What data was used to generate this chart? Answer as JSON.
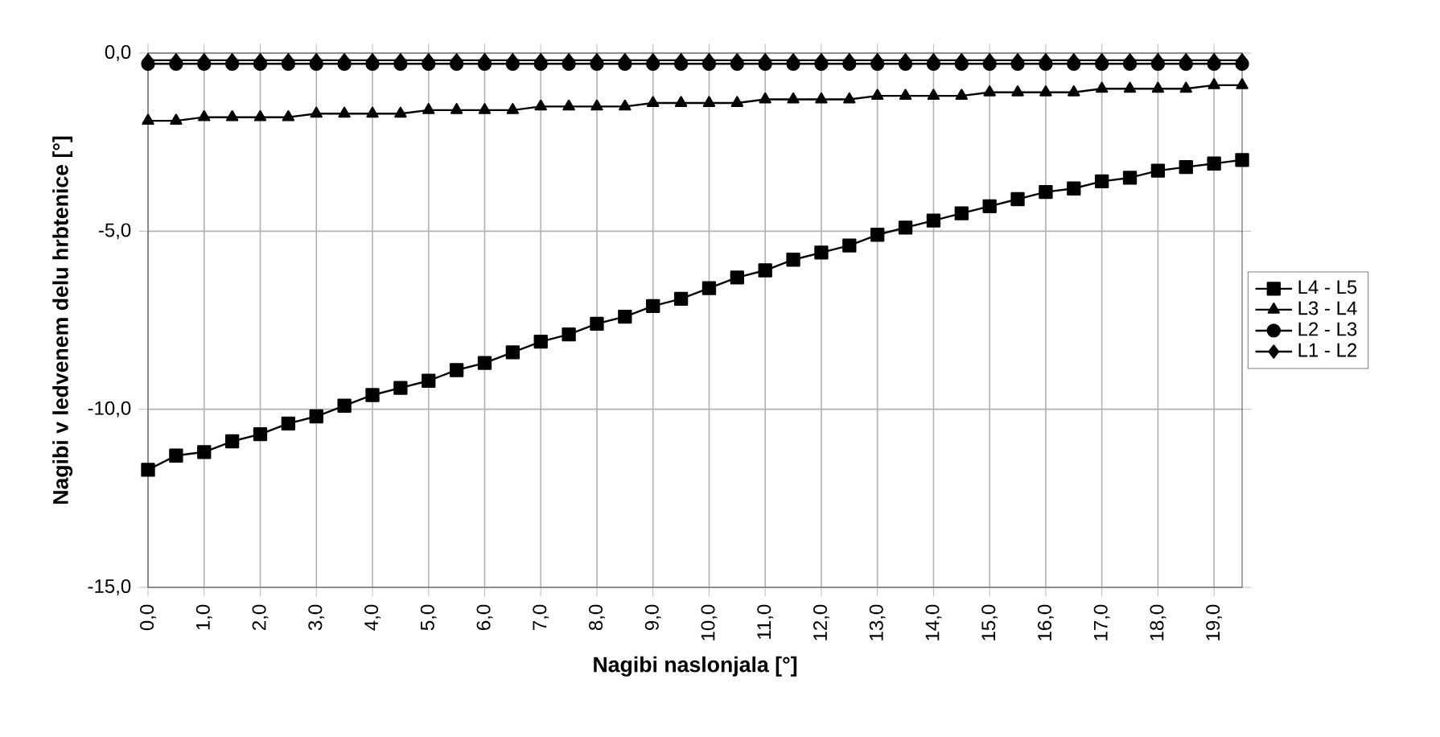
{
  "chart_data": {
    "type": "line",
    "xlabel": "Nagibi naslonjala [°]",
    "ylabel": "Nagibi v ledvenem delu hrbtenice [°]",
    "x": [
      0,
      0.5,
      1,
      1.5,
      2,
      2.5,
      3,
      3.5,
      4,
      4.5,
      5,
      5.5,
      6,
      6.5,
      7,
      7.5,
      8,
      8.5,
      9,
      9.5,
      10,
      10.5,
      11,
      11.5,
      12,
      12.5,
      13,
      13.5,
      14,
      14.5,
      15,
      15.5,
      16,
      16.5,
      17,
      17.5,
      18,
      18.5,
      19,
      19.5
    ],
    "series": [
      {
        "name": "L4 - L5",
        "color": "#000000",
        "marker": "square",
        "values": [
          -11.7,
          -11.3,
          -11.2,
          -10.9,
          -10.7,
          -10.4,
          -10.2,
          -9.9,
          -9.6,
          -9.4,
          -9.2,
          -8.9,
          -8.7,
          -8.4,
          -8.1,
          -7.9,
          -7.6,
          -7.4,
          -7.1,
          -6.9,
          -6.6,
          -6.3,
          -6.1,
          -5.8,
          -5.6,
          -5.4,
          -5.1,
          -4.9,
          -4.7,
          -4.5,
          -4.3,
          -4.1,
          -3.9,
          -3.8,
          -3.6,
          -3.5,
          -3.3,
          -3.2,
          -3.1,
          -3.0
        ]
      },
      {
        "name": "L3 - L4",
        "color": "#000000",
        "marker": "triangle",
        "values": [
          -1.9,
          -1.9,
          -1.8,
          -1.8,
          -1.8,
          -1.8,
          -1.7,
          -1.7,
          -1.7,
          -1.7,
          -1.6,
          -1.6,
          -1.6,
          -1.6,
          -1.5,
          -1.5,
          -1.5,
          -1.5,
          -1.4,
          -1.4,
          -1.4,
          -1.4,
          -1.3,
          -1.3,
          -1.3,
          -1.3,
          -1.2,
          -1.2,
          -1.2,
          -1.2,
          -1.1,
          -1.1,
          -1.1,
          -1.1,
          -1.0,
          -1.0,
          -1.0,
          -1.0,
          -0.9,
          -0.9
        ]
      },
      {
        "name": "L2 - L3",
        "color": "#000000",
        "marker": "circle",
        "values": [
          -0.3,
          -0.3,
          -0.3,
          -0.3,
          -0.3,
          -0.3,
          -0.3,
          -0.3,
          -0.3,
          -0.3,
          -0.3,
          -0.3,
          -0.3,
          -0.3,
          -0.3,
          -0.3,
          -0.3,
          -0.3,
          -0.3,
          -0.3,
          -0.3,
          -0.3,
          -0.3,
          -0.3,
          -0.3,
          -0.3,
          -0.3,
          -0.3,
          -0.3,
          -0.3,
          -0.3,
          -0.3,
          -0.3,
          -0.3,
          -0.3,
          -0.3,
          -0.3,
          -0.3,
          -0.3,
          -0.3
        ]
      },
      {
        "name": "L1 - L2",
        "color": "#000000",
        "marker": "diamond",
        "values": [
          -0.2,
          -0.2,
          -0.2,
          -0.2,
          -0.2,
          -0.2,
          -0.2,
          -0.2,
          -0.2,
          -0.2,
          -0.2,
          -0.2,
          -0.2,
          -0.2,
          -0.2,
          -0.2,
          -0.2,
          -0.2,
          -0.2,
          -0.2,
          -0.2,
          -0.2,
          -0.2,
          -0.2,
          -0.2,
          -0.2,
          -0.2,
          -0.2,
          -0.2,
          -0.2,
          -0.2,
          -0.2,
          -0.2,
          -0.2,
          -0.2,
          -0.2,
          -0.2,
          -0.2,
          -0.2,
          -0.2
        ]
      }
    ],
    "xlim": [
      0,
      19.5
    ],
    "ylim": [
      -15,
      0
    ],
    "xticks": [
      {
        "value": 0,
        "label": "0,0"
      },
      {
        "value": 1,
        "label": "1,0"
      },
      {
        "value": 2,
        "label": "2,0"
      },
      {
        "value": 3,
        "label": "3,0"
      },
      {
        "value": 4,
        "label": "4,0"
      },
      {
        "value": 5,
        "label": "5,0"
      },
      {
        "value": 6,
        "label": "6,0"
      },
      {
        "value": 7,
        "label": "7,0"
      },
      {
        "value": 8,
        "label": "8,0"
      },
      {
        "value": 9,
        "label": "9,0"
      },
      {
        "value": 10,
        "label": "10,0"
      },
      {
        "value": 11,
        "label": "11,0"
      },
      {
        "value": 12,
        "label": "12,0"
      },
      {
        "value": 13,
        "label": "13,0"
      },
      {
        "value": 14,
        "label": "14,0"
      },
      {
        "value": 15,
        "label": "15,0"
      },
      {
        "value": 16,
        "label": "16,0"
      },
      {
        "value": 17,
        "label": "17,0"
      },
      {
        "value": 18,
        "label": "18,0"
      },
      {
        "value": 19,
        "label": "19,0"
      }
    ],
    "yticks": [
      {
        "value": -15,
        "label": "-15,0"
      },
      {
        "value": -10,
        "label": "-10,0"
      },
      {
        "value": -5,
        "label": "-5,0"
      },
      {
        "value": 0,
        "label": "0,0"
      }
    ],
    "grid": true,
    "legend": "right",
    "line_style": "solid"
  }
}
